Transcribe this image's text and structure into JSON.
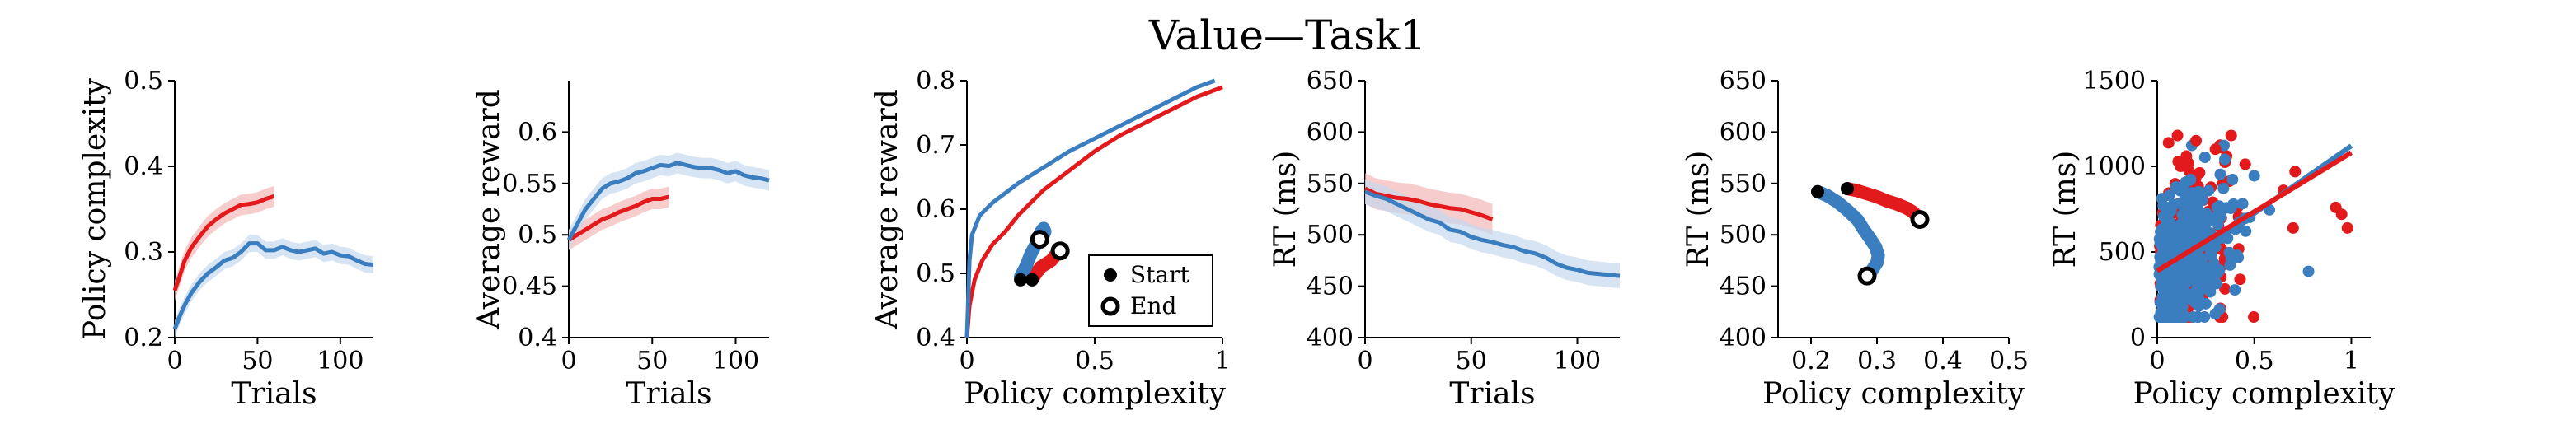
{
  "figure_title": "Value—Task1",
  "colors": {
    "red": "#e31a1c",
    "blue": "#3a7ebf",
    "red_band": "#f4b6b6",
    "blue_band": "#c5d9ee"
  },
  "chart_data": [
    {
      "type": "line",
      "xlabel": "Trials",
      "ylabel": "Policy complexity",
      "xlim": [
        0,
        120
      ],
      "ylim": [
        0.2,
        0.5
      ],
      "xticks": [
        0,
        50,
        100
      ],
      "yticks": [
        0.2,
        0.3,
        0.4,
        0.5
      ],
      "xtick_labels": [
        "0",
        "50",
        "100"
      ],
      "ytick_labels": [
        "0.2",
        "0.3",
        "0.4",
        "0.5"
      ],
      "series": [
        {
          "color": "red",
          "band": 0.012,
          "x": [
            0,
            3,
            6,
            10,
            15,
            20,
            25,
            30,
            35,
            40,
            45,
            50,
            55,
            60
          ],
          "y": [
            0.255,
            0.272,
            0.29,
            0.305,
            0.318,
            0.33,
            0.338,
            0.345,
            0.35,
            0.355,
            0.356,
            0.358,
            0.362,
            0.365
          ]
        },
        {
          "color": "blue",
          "band": 0.01,
          "x": [
            0,
            3,
            6,
            10,
            15,
            20,
            25,
            30,
            35,
            40,
            45,
            50,
            55,
            60,
            65,
            70,
            75,
            80,
            85,
            90,
            95,
            100,
            105,
            110,
            115,
            120
          ],
          "y": [
            0.21,
            0.225,
            0.238,
            0.252,
            0.265,
            0.275,
            0.282,
            0.29,
            0.293,
            0.3,
            0.31,
            0.31,
            0.302,
            0.302,
            0.306,
            0.302,
            0.3,
            0.302,
            0.304,
            0.298,
            0.3,
            0.296,
            0.295,
            0.29,
            0.286,
            0.285
          ]
        }
      ]
    },
    {
      "type": "line",
      "xlabel": "Trials",
      "ylabel": "Average reward",
      "xlim": [
        0,
        120
      ],
      "ylim": [
        0.4,
        0.65
      ],
      "xticks": [
        0,
        50,
        100
      ],
      "yticks": [
        0.4,
        0.45,
        0.5,
        0.55,
        0.6
      ],
      "xtick_labels": [
        "0",
        "50",
        "100"
      ],
      "ytick_labels": [
        "0.4",
        "0.45",
        "0.5",
        "0.55",
        "0.6"
      ],
      "series": [
        {
          "color": "red",
          "band": 0.01,
          "x": [
            0,
            5,
            10,
            15,
            20,
            25,
            30,
            35,
            40,
            45,
            50,
            55,
            60
          ],
          "y": [
            0.495,
            0.5,
            0.505,
            0.51,
            0.515,
            0.518,
            0.522,
            0.525,
            0.528,
            0.532,
            0.535,
            0.535,
            0.537
          ]
        },
        {
          "color": "blue",
          "band": 0.01,
          "x": [
            0,
            5,
            10,
            15,
            20,
            25,
            30,
            35,
            40,
            45,
            50,
            55,
            60,
            65,
            70,
            75,
            80,
            85,
            90,
            95,
            100,
            105,
            110,
            115,
            120
          ],
          "y": [
            0.495,
            0.51,
            0.525,
            0.535,
            0.545,
            0.55,
            0.552,
            0.555,
            0.56,
            0.562,
            0.565,
            0.568,
            0.567,
            0.57,
            0.568,
            0.566,
            0.565,
            0.565,
            0.563,
            0.56,
            0.562,
            0.558,
            0.556,
            0.555,
            0.553
          ]
        }
      ]
    },
    {
      "type": "line",
      "xlabel": "Policy complexity",
      "ylabel": "Average reward",
      "xlim": [
        0,
        1
      ],
      "ylim": [
        0.4,
        0.8
      ],
      "xticks": [
        0,
        0.5,
        1
      ],
      "yticks": [
        0.4,
        0.5,
        0.6,
        0.7,
        0.8
      ],
      "xtick_labels": [
        "0",
        "0.5",
        "1"
      ],
      "ytick_labels": [
        "0.4",
        "0.5",
        "0.6",
        "0.7",
        "0.8"
      ],
      "series": [
        {
          "color": "red",
          "x": [
            0.0,
            0.01,
            0.03,
            0.06,
            0.1,
            0.15,
            0.2,
            0.3,
            0.4,
            0.5,
            0.6,
            0.7,
            0.8,
            0.9,
            1.0
          ],
          "y": [
            0.4,
            0.45,
            0.49,
            0.52,
            0.545,
            0.565,
            0.59,
            0.63,
            0.66,
            0.69,
            0.715,
            0.735,
            0.755,
            0.775,
            0.79
          ]
        },
        {
          "color": "blue",
          "x": [
            0.0,
            0.005,
            0.01,
            0.02,
            0.05,
            0.1,
            0.15,
            0.2,
            0.3,
            0.4,
            0.5,
            0.6,
            0.7,
            0.8,
            0.9,
            0.97
          ],
          "y": [
            0.4,
            0.46,
            0.52,
            0.56,
            0.59,
            0.61,
            0.625,
            0.64,
            0.665,
            0.69,
            0.71,
            0.73,
            0.75,
            0.77,
            0.79,
            0.8
          ]
        }
      ],
      "trajectories": [
        {
          "color": "red",
          "x": [
            0.255,
            0.27,
            0.29,
            0.31,
            0.33,
            0.35,
            0.365
          ],
          "y": [
            0.49,
            0.5,
            0.51,
            0.515,
            0.52,
            0.53,
            0.535
          ]
        },
        {
          "color": "blue",
          "x": [
            0.21,
            0.23,
            0.25,
            0.27,
            0.28,
            0.29,
            0.3,
            0.305,
            0.3,
            0.29,
            0.285
          ],
          "y": [
            0.495,
            0.51,
            0.53,
            0.545,
            0.555,
            0.565,
            0.57,
            0.565,
            0.56,
            0.555,
            0.553
          ]
        }
      ],
      "start_points": [
        {
          "x": 0.21,
          "y": 0.49
        },
        {
          "x": 0.255,
          "y": 0.49
        }
      ],
      "end_points": [
        {
          "x": 0.285,
          "y": 0.553
        },
        {
          "x": 0.365,
          "y": 0.535
        }
      ],
      "legend": {
        "placement": "bottom-right",
        "entries": [
          "Start",
          "End"
        ]
      }
    },
    {
      "type": "line",
      "xlabel": "Trials",
      "ylabel": "RT (ms)",
      "xlim": [
        0,
        120
      ],
      "ylim": [
        400,
        650
      ],
      "xticks": [
        0,
        50,
        100
      ],
      "yticks": [
        400,
        450,
        500,
        550,
        600,
        650
      ],
      "xtick_labels": [
        "0",
        "50",
        "100"
      ],
      "ytick_labels": [
        "400",
        "450",
        "500",
        "550",
        "600",
        "650"
      ],
      "series": [
        {
          "color": "red",
          "band": 15,
          "x": [
            0,
            5,
            10,
            15,
            20,
            25,
            30,
            35,
            40,
            45,
            50,
            55,
            60
          ],
          "y": [
            545,
            540,
            538,
            536,
            535,
            533,
            530,
            528,
            526,
            525,
            522,
            519,
            515
          ]
        },
        {
          "color": "blue",
          "band": 12,
          "x": [
            0,
            5,
            10,
            15,
            20,
            25,
            30,
            35,
            40,
            45,
            50,
            55,
            60,
            65,
            70,
            75,
            80,
            85,
            90,
            95,
            100,
            105,
            110,
            115,
            120
          ],
          "y": [
            542,
            538,
            535,
            530,
            525,
            520,
            515,
            512,
            505,
            503,
            498,
            495,
            493,
            490,
            488,
            484,
            482,
            478,
            472,
            468,
            466,
            463,
            462,
            461,
            460
          ]
        }
      ]
    },
    {
      "type": "scatter",
      "xlabel": "Policy complexity",
      "ylabel": "RT (ms)",
      "xlim": [
        0.15,
        0.5
      ],
      "ylim": [
        400,
        650
      ],
      "xticks": [
        0.2,
        0.3,
        0.4,
        0.5
      ],
      "yticks": [
        400,
        450,
        500,
        550,
        600,
        650
      ],
      "xtick_labels": [
        "0.2",
        "0.3",
        "0.4",
        "0.5"
      ],
      "ytick_labels": [
        "400",
        "450",
        "500",
        "550",
        "600",
        "650"
      ],
      "trajectories": [
        {
          "color": "red",
          "x": [
            0.255,
            0.27,
            0.285,
            0.3,
            0.315,
            0.33,
            0.345,
            0.355,
            0.365
          ],
          "y": [
            545,
            543,
            540,
            537,
            533,
            530,
            526,
            522,
            515
          ]
        },
        {
          "color": "blue",
          "x": [
            0.21,
            0.225,
            0.24,
            0.255,
            0.27,
            0.28,
            0.29,
            0.298,
            0.302,
            0.3,
            0.295,
            0.29,
            0.285
          ],
          "y": [
            542,
            538,
            532,
            524,
            515,
            505,
            496,
            488,
            480,
            473,
            468,
            463,
            460
          ]
        }
      ],
      "start_points": [
        {
          "x": 0.21,
          "y": 542
        },
        {
          "x": 0.255,
          "y": 545
        }
      ],
      "end_points": [
        {
          "x": 0.285,
          "y": 460
        },
        {
          "x": 0.365,
          "y": 515
        }
      ]
    },
    {
      "type": "scatter",
      "xlabel": "Policy complexity",
      "ylabel": "RT (ms)",
      "xlim": [
        0,
        1.1
      ],
      "ylim": [
        0,
        1500
      ],
      "xticks": [
        0,
        0.5,
        1
      ],
      "yticks": [
        0,
        500,
        1000,
        1500
      ],
      "xtick_labels": [
        "0",
        "0.5",
        "1"
      ],
      "ytick_labels": [
        "0",
        "500",
        "1000",
        "1500"
      ],
      "fit_lines": [
        {
          "color": "blue",
          "x": [
            0,
            1
          ],
          "y": [
            330,
            1120
          ]
        },
        {
          "color": "red",
          "x": [
            0,
            1
          ],
          "y": [
            390,
            1080
          ]
        }
      ],
      "scatter_seed": 7,
      "scatter": [
        {
          "color": "red",
          "n": 260
        },
        {
          "color": "blue",
          "n": 380
        }
      ],
      "red_outliers": [
        {
          "x": 0.95,
          "y": 720
        },
        {
          "x": 0.98,
          "y": 640
        },
        {
          "x": 0.92,
          "y": 760
        },
        {
          "x": 0.7,
          "y": 640
        },
        {
          "x": 0.65,
          "y": 860
        },
        {
          "x": 0.2,
          "y": 1150
        },
        {
          "x": 0.15,
          "y": 1060
        },
        {
          "x": 0.3,
          "y": 1100
        },
        {
          "x": 0.12,
          "y": 1000
        }
      ]
    }
  ]
}
